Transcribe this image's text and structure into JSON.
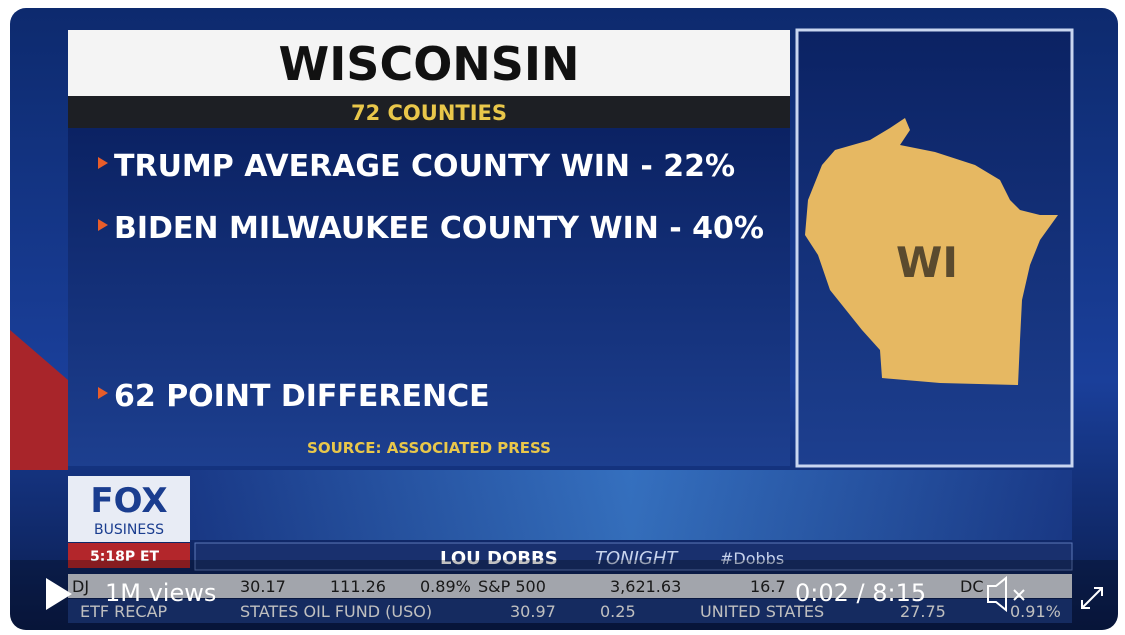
{
  "graphic": {
    "title": "WISCONSIN",
    "subtitle": "72 COUNTIES",
    "bullets": [
      "TRUMP AVERAGE COUNTY WIN - 22%",
      "BIDEN MILWAUKEE COUNTY WIN - 40%",
      "62 POINT DIFFERENCE"
    ],
    "source": "SOURCE: ASSOCIATED PRESS",
    "map_label": "WI"
  },
  "network": {
    "logo": "FOX",
    "logo_sub": "BUSINESS",
    "time": "5:18P ET",
    "show": "LOU DOBBS",
    "show_sub": "TONIGHT",
    "hashtag": "#Dobbs"
  },
  "ticker": {
    "row1": [
      "DJ",
      "30.17",
      "111.26",
      "0.89%",
      "S&P 500",
      "3,621.63",
      "16.7",
      "DC"
    ],
    "row2": [
      "ETF RECAP",
      "STATES OIL FUND (USO)",
      "30.97",
      "0.25",
      "UNITED STATES",
      "27.75",
      "0.91%"
    ]
  },
  "player": {
    "views": "1M views",
    "time": "0:02 / 8:15"
  }
}
